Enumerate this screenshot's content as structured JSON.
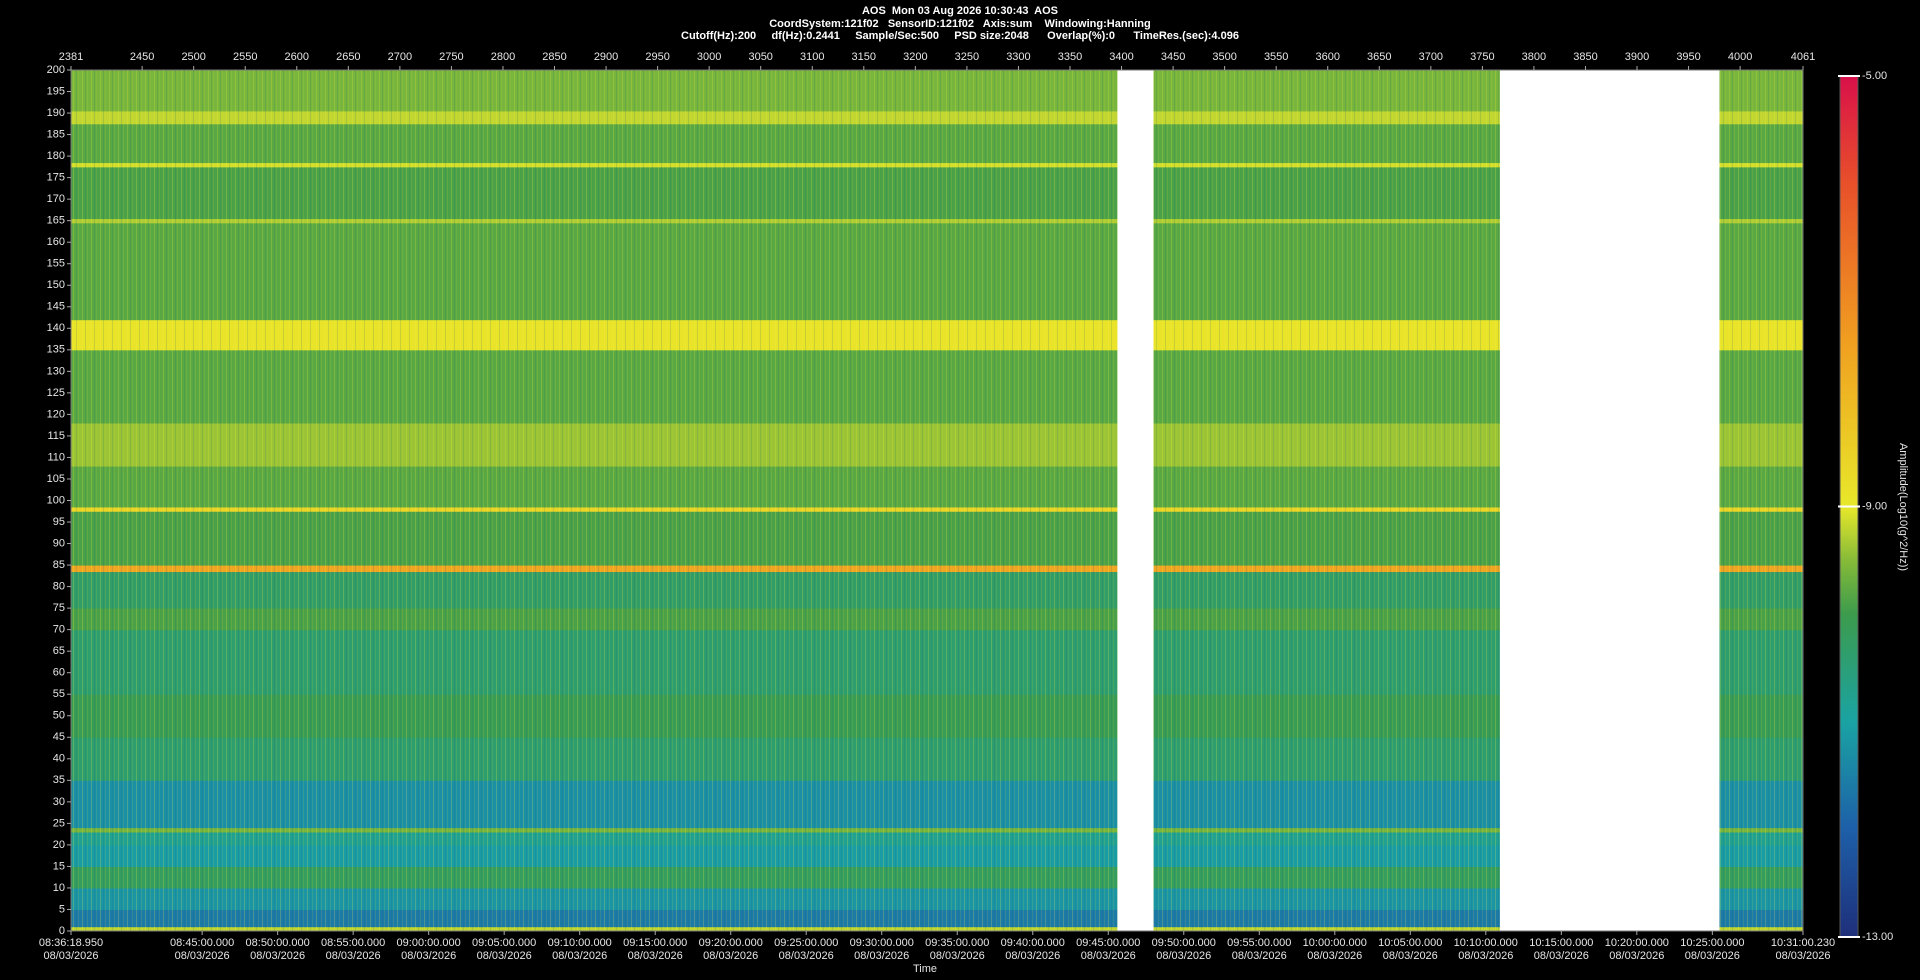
{
  "chart_data": {
    "type": "spectrogram",
    "title": "AOS  Mon 03 Aug 2026 10:30:43  AOS",
    "subtitle": [
      "CoordSystem:121f02   SensorID:121f02   Axis:sum    Windowing:Hanning",
      "Cutoff(Hz):200     df(Hz):0.2441     Sample/Sec:500     PSD size:2048      Overlap(%):0      TimeRes.(sec):4.096"
    ],
    "x_label": "Time",
    "colorbar_label": "Amplitude(Log10(g^2/Hz))",
    "xlim": [
      30978.95,
      37860.23
    ],
    "xticks": [
      {
        "value": 30978.95,
        "label": "08:36:18.950\n08/03/2026"
      },
      {
        "value": 31500,
        "label": "08:45:00.000\n08/03/2026"
      },
      {
        "value": 31800,
        "label": "08:50:00.000\n08/03/2026"
      },
      {
        "value": 32100,
        "label": "08:55:00.000\n08/03/2026"
      },
      {
        "value": 32400,
        "label": "09:00:00.000\n08/03/2026"
      },
      {
        "value": 32700,
        "label": "09:05:00.000\n08/03/2026"
      },
      {
        "value": 33000,
        "label": "09:10:00.000\n08/03/2026"
      },
      {
        "value": 33300,
        "label": "09:15:00.000\n08/03/2026"
      },
      {
        "value": 33600,
        "label": "09:20:00.000\n08/03/2026"
      },
      {
        "value": 33900,
        "label": "09:25:00.000\n08/03/2026"
      },
      {
        "value": 34200,
        "label": "09:30:00.000\n08/03/2026"
      },
      {
        "value": 34500,
        "label": "09:35:00.000\n08/03/2026"
      },
      {
        "value": 34800,
        "label": "09:40:00.000\n08/03/2026"
      },
      {
        "value": 35100,
        "label": "09:45:00.000\n08/03/2026"
      },
      {
        "value": 35400,
        "label": "09:50:00.000\n08/03/2026"
      },
      {
        "value": 35700,
        "label": "09:55:00.000\n08/03/2026"
      },
      {
        "value": 36000,
        "label": "10:00:00.000\n08/03/2026"
      },
      {
        "value": 36300,
        "label": "10:05:00.000\n08/03/2026"
      },
      {
        "value": 36600,
        "label": "10:10:00.000\n08/03/2026"
      },
      {
        "value": 36900,
        "label": "10:15:00.000\n08/03/2026"
      },
      {
        "value": 37200,
        "label": "10:20:00.000\n08/03/2026"
      },
      {
        "value": 37500,
        "label": "10:25:00.000\n08/03/2026"
      },
      {
        "value": 37860.23,
        "label": "10:31:00.230\n08/03/2026"
      }
    ],
    "x2lim": [
      2381,
      4061
    ],
    "x2ticks": [
      2381,
      2450,
      2500,
      2550,
      2600,
      2650,
      2700,
      2750,
      2800,
      2850,
      2900,
      2950,
      3000,
      3050,
      3100,
      3150,
      3200,
      3250,
      3300,
      3350,
      3400,
      3450,
      3500,
      3550,
      3600,
      3650,
      3700,
      3750,
      3800,
      3850,
      3900,
      3950,
      4000,
      4061
    ],
    "ylim": [
      0,
      200
    ],
    "yticks": [
      0,
      5,
      10,
      15,
      20,
      25,
      30,
      35,
      40,
      45,
      50,
      55,
      60,
      65,
      70,
      75,
      80,
      85,
      90,
      95,
      100,
      105,
      110,
      115,
      120,
      125,
      130,
      135,
      140,
      145,
      150,
      155,
      160,
      165,
      170,
      175,
      180,
      185,
      190,
      195,
      200
    ],
    "clim": [
      -13,
      -5
    ],
    "cticks": [
      {
        "value": -5,
        "label": "-5.00"
      },
      {
        "value": -9,
        "label": "-9.00"
      },
      {
        "value": -13,
        "label": "-13.00"
      }
    ],
    "colorscale": [
      [
        -13,
        "#1f2f7a"
      ],
      [
        -12,
        "#1d5fa8"
      ],
      [
        -11,
        "#1aa3a3"
      ],
      [
        -10,
        "#3c9b4c"
      ],
      [
        -9.5,
        "#86bb38"
      ],
      [
        -9,
        "#e8e82a"
      ],
      [
        -7.5,
        "#f0a020"
      ],
      [
        -6,
        "#e8502a"
      ],
      [
        -5,
        "#d8104a"
      ]
    ],
    "segments": [
      [
        2381,
        3396
      ],
      [
        3431,
        3767
      ],
      [
        3980,
        4061
      ]
    ],
    "bands": [
      {
        "from": 0,
        "to": 1,
        "value": -9.2
      },
      {
        "from": 1,
        "to": 5,
        "value": -11.6
      },
      {
        "from": 5,
        "to": 10,
        "value": -11.2
      },
      {
        "from": 10,
        "to": 15,
        "value": -10.2
      },
      {
        "from": 15,
        "to": 20,
        "value": -11.1
      },
      {
        "from": 20,
        "to": 23,
        "value": -10.8
      },
      {
        "from": 23,
        "to": 24,
        "value": -9.6
      },
      {
        "from": 24,
        "to": 35,
        "value": -11.3
      },
      {
        "from": 35,
        "to": 45,
        "value": -10.4
      },
      {
        "from": 45,
        "to": 55,
        "value": -10.1
      },
      {
        "from": 55,
        "to": 70,
        "value": -10.4
      },
      {
        "from": 70,
        "to": 75,
        "value": -9.9
      },
      {
        "from": 75,
        "to": 83.5,
        "value": -10.3
      },
      {
        "from": 83.5,
        "to": 85,
        "value": -7.6
      },
      {
        "from": 85,
        "to": 97.5,
        "value": -9.9
      },
      {
        "from": 97.5,
        "to": 98.5,
        "value": -8.6
      },
      {
        "from": 98.5,
        "to": 108,
        "value": -9.8
      },
      {
        "from": 108,
        "to": 118,
        "value": -9.4
      },
      {
        "from": 118,
        "to": 135,
        "value": -9.8
      },
      {
        "from": 135,
        "to": 142,
        "value": -8.9
      },
      {
        "from": 142,
        "to": 164.5,
        "value": -9.8
      },
      {
        "from": 164.5,
        "to": 165.5,
        "value": -9.3
      },
      {
        "from": 165.5,
        "to": 177.5,
        "value": -9.9
      },
      {
        "from": 177.5,
        "to": 178.5,
        "value": -9.1
      },
      {
        "from": 178.5,
        "to": 187.5,
        "value": -9.8
      },
      {
        "from": 187.5,
        "to": 190.5,
        "value": -9.2
      },
      {
        "from": 190.5,
        "to": 200,
        "value": -9.6
      }
    ]
  }
}
